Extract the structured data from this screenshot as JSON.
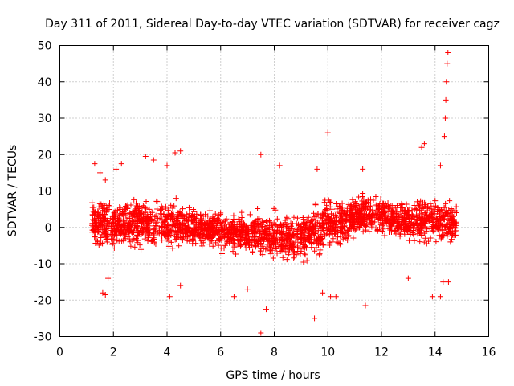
{
  "chart_data": {
    "type": "scatter",
    "title": "Day 311 of 2011, Sidereal Day-to-day VTEC variation (SDTVAR) for receiver cagz",
    "xlabel": "GPS time / hours",
    "ylabel": "SDTVAR / TECUs",
    "xlim": [
      0,
      16
    ],
    "ylim": [
      -30,
      50
    ],
    "xticks": [
      0,
      2,
      4,
      6,
      8,
      10,
      12,
      14,
      16
    ],
    "yticks": [
      -30,
      -20,
      -10,
      0,
      10,
      20,
      30,
      40,
      50
    ],
    "grid": true,
    "marker": "+",
    "color": "#ff0000",
    "band": {
      "x": [
        1.2,
        2,
        3,
        4,
        5,
        6,
        7,
        7.5,
        8.5,
        9.3,
        9.8,
        10.5,
        11,
        11.5,
        12,
        12.5,
        13,
        13.5,
        14,
        14.5,
        14.8
      ],
      "center": [
        2,
        0.5,
        1,
        1,
        0,
        -1,
        -1.5,
        -2,
        -3,
        -2,
        0,
        2,
        3,
        4,
        3,
        2,
        1.5,
        2,
        2,
        1,
        1
      ],
      "spread": [
        5,
        5,
        5,
        5,
        4,
        4,
        4,
        5,
        5,
        5,
        6,
        5,
        4,
        4,
        4,
        4,
        4,
        5,
        5,
        5,
        4
      ]
    },
    "outliers": [
      [
        1.3,
        17.5
      ],
      [
        1.5,
        15
      ],
      [
        1.7,
        13
      ],
      [
        2.1,
        16
      ],
      [
        2.3,
        17.5
      ],
      [
        3.2,
        19.5
      ],
      [
        3.5,
        18.5
      ],
      [
        4.0,
        17
      ],
      [
        4.3,
        20.5
      ],
      [
        4.5,
        21
      ],
      [
        7.5,
        20
      ],
      [
        8.2,
        17
      ],
      [
        9.6,
        16
      ],
      [
        10.0,
        26
      ],
      [
        11.3,
        16
      ],
      [
        13.5,
        22
      ],
      [
        13.6,
        23
      ],
      [
        14.2,
        17
      ],
      [
        14.35,
        25
      ],
      [
        14.38,
        30
      ],
      [
        14.4,
        35
      ],
      [
        14.42,
        40
      ],
      [
        14.45,
        45
      ],
      [
        14.48,
        48
      ],
      [
        1.6,
        -18
      ],
      [
        1.7,
        -18.5
      ],
      [
        1.8,
        -14
      ],
      [
        4.1,
        -19
      ],
      [
        4.5,
        -16
      ],
      [
        6.5,
        -19
      ],
      [
        7.0,
        -17
      ],
      [
        7.5,
        -29
      ],
      [
        7.7,
        -22.5
      ],
      [
        9.5,
        -25
      ],
      [
        9.8,
        -18
      ],
      [
        10.1,
        -19
      ],
      [
        10.3,
        -19
      ],
      [
        11.4,
        -21.5
      ],
      [
        13.0,
        -14
      ],
      [
        13.9,
        -19
      ],
      [
        14.2,
        -19
      ],
      [
        14.3,
        -15
      ],
      [
        14.5,
        -15
      ]
    ]
  }
}
